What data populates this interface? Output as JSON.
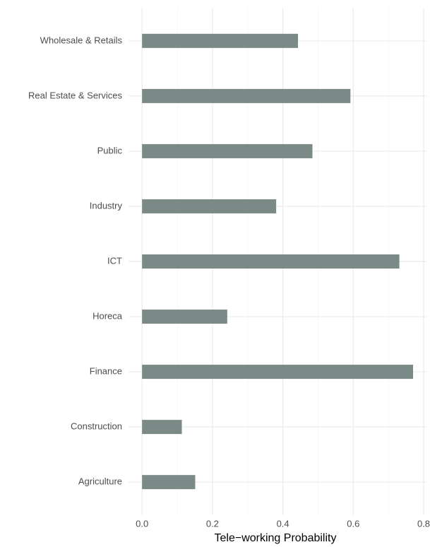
{
  "chart_data": {
    "type": "barh",
    "x_label": "Tele−working Probability",
    "categories": [
      "Agriculture",
      "Construction",
      "Finance",
      "Horeca",
      "ICT",
      "Industry",
      "Public",
      "Real Estate & Services",
      "Wholesale & Retails"
    ],
    "values": [
      0.151,
      0.113,
      0.77,
      0.242,
      0.731,
      0.381,
      0.484,
      0.592,
      0.443
    ],
    "color": "#7b8a87",
    "xlim": [
      -0.0385,
      0.808
    ],
    "xticks": [
      {
        "value": 0,
        "label": "0.0"
      },
      0.2,
      0.4,
      0.6,
      0.8
    ],
    "minor_xticks": [
      0.1,
      0.3,
      0.5,
      0.7
    ],
    "grid": true
  }
}
